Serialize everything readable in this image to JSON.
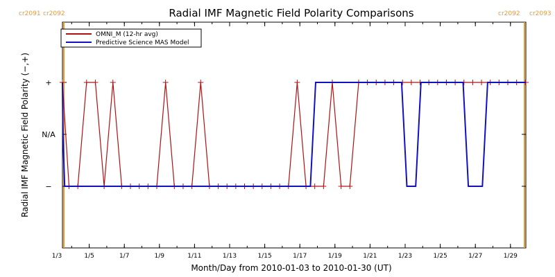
{
  "chart_data": {
    "type": "line",
    "title": "Radial IMF Magnetic Field Polarity Comparisons",
    "xlabel": "Month/Day from 2010-01-03 to 2010-01-30 (UT)",
    "ylabel": "Radial IMF Magnetic Field Polarity (−,+)",
    "x_start_date": "2010-01-03",
    "xlim": [
      3.35,
      30.3
    ],
    "ylim": [
      -1.5,
      1.5
    ],
    "x_ticks": [
      3,
      5,
      7,
      9,
      11,
      13,
      15,
      17,
      19,
      21,
      23,
      25,
      27,
      29
    ],
    "x_tick_labels": [
      "1/3",
      "1/5",
      "1/7",
      "1/9",
      "1/11",
      "1/13",
      "1/15",
      "1/17",
      "1/19",
      "1/21",
      "1/23",
      "1/25",
      "1/27",
      "1/29"
    ],
    "y_ticks": [
      1,
      0,
      -1
    ],
    "y_tick_labels": [
      "+",
      "N/A",
      "−"
    ],
    "grid": false,
    "legend_position": "top-left",
    "series": [
      {
        "name": "OMNI_M (12-hr avg)",
        "color": "#b01010",
        "marker": "+",
        "x": [
          3.35,
          3.85,
          4.35,
          4.85,
          5.35,
          5.85,
          6.35,
          6.85,
          7.35,
          7.85,
          8.35,
          8.85,
          9.35,
          9.85,
          10.35,
          10.85,
          11.35,
          11.85,
          12.35,
          12.85,
          13.35,
          13.85,
          14.35,
          14.85,
          15.35,
          15.85,
          16.35,
          16.85,
          17.35,
          17.85,
          18.35,
          18.85,
          19.35,
          19.85,
          20.35,
          20.85,
          21.35,
          21.85,
          22.35,
          22.85,
          23.35,
          23.85,
          24.35,
          24.85,
          25.35,
          25.85,
          26.35,
          26.85,
          27.35,
          27.85,
          28.35,
          28.85,
          29.35,
          29.85,
          30.3
        ],
        "y": [
          1,
          -1,
          -1,
          1,
          1,
          -1,
          1,
          -1,
          -1,
          -1,
          -1,
          -1,
          1,
          -1,
          -1,
          -1,
          1,
          -1,
          -1,
          -1,
          -1,
          -1,
          -1,
          -1,
          -1,
          -1,
          -1,
          1,
          -1,
          -1,
          -1,
          1,
          -1,
          -1,
          1,
          1,
          1,
          1,
          1,
          1,
          1,
          1,
          1,
          1,
          1,
          1,
          1,
          1,
          1,
          1,
          1,
          1,
          1,
          1,
          1
        ]
      },
      {
        "name": "Predictive Science MAS Model",
        "color": "#1010c0",
        "marker": "none",
        "x": [
          3.35,
          3.5,
          3.6,
          17.6,
          17.9,
          22.8,
          23.1,
          23.6,
          23.9,
          26.3,
          26.6,
          27.4,
          27.7,
          30.3
        ],
        "y": [
          1,
          0,
          -1,
          -1,
          1,
          1,
          -1,
          -1,
          1,
          1,
          -1,
          -1,
          1,
          1
        ]
      }
    ],
    "annotations": [
      {
        "text": "cr2091",
        "color": "#e69a30"
      },
      {
        "text": "cr2092",
        "color": "#e69a30"
      },
      {
        "text": "cr2092",
        "color": "#e69a30"
      },
      {
        "text": "cr2093",
        "color": "#e69a30"
      }
    ]
  }
}
